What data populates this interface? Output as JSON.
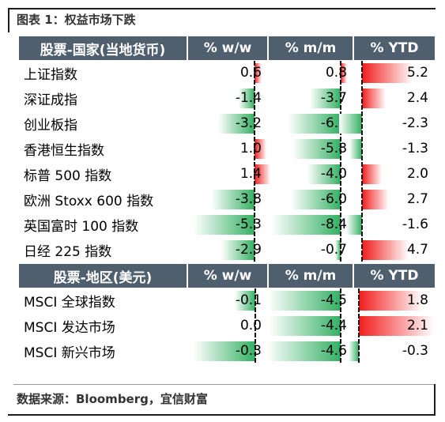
{
  "title": "图表 1：权益市场下跌",
  "source": "数据来源：Bloomberg，宜信财富",
  "colors": {
    "negative_bar": "#33b062",
    "positive_bar": "#f21c1c",
    "header_bg": "#4f5f6d"
  },
  "country_table": {
    "headers": [
      "股票-国家(当地货币)",
      "% w/w",
      "% m/m",
      "% YTD"
    ],
    "rows": [
      {
        "name": "上证指数",
        "ww": "0.6",
        "mm": "0.8",
        "ytd": "5.2"
      },
      {
        "name": "深证成指",
        "ww": "-1.4",
        "mm": "-3.7",
        "ytd": "2.4"
      },
      {
        "name": "创业板指",
        "ww": "-3.2",
        "mm": "-6.4",
        "ytd": "-2.3"
      },
      {
        "name": "香港恒生指数",
        "ww": "1.0",
        "mm": "-5.8",
        "ytd": "-1.3"
      },
      {
        "name": "标普 500 指数",
        "ww": "1.4",
        "mm": "-4.0",
        "ytd": "2.0"
      },
      {
        "name": "欧洲 Stoxx 600 指数",
        "ww": "-3.8",
        "mm": "-6.0",
        "ytd": "2.7"
      },
      {
        "name": "英国富时 100 指数",
        "ww": "-5.3",
        "mm": "-8.4",
        "ytd": "-1.6"
      },
      {
        "name": "日经 225 指数",
        "ww": "-2.9",
        "mm": "-0.7",
        "ytd": "4.7"
      }
    ]
  },
  "region_table": {
    "headers": [
      "股票-地区(美元)",
      "% w/w",
      "% m/m",
      "% YTD"
    ],
    "rows": [
      {
        "name": "MSCI 全球指数",
        "ww": "-0.1",
        "mm": "-4.5",
        "ytd": "1.8"
      },
      {
        "name": "MSCI 发达市场",
        "ww": "0.0",
        "mm": "-4.4",
        "ytd": "2.1"
      },
      {
        "name": "MSCI 新兴市场",
        "ww": "-0.3",
        "mm": "-4.6",
        "ytd": "-0.3"
      }
    ]
  }
}
